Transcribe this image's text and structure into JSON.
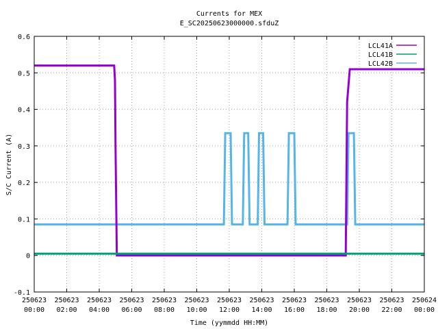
{
  "chart_data": {
    "type": "line",
    "title": "Currents for MEX",
    "subtitle": "E_SC20250623000000.sfduZ",
    "xlabel": "Time (yymmdd HH:MM)",
    "ylabel": "S/C Current (A)",
    "xlim": [
      "2025-06-23 00:00",
      "2025-06-24 00:00"
    ],
    "ylim": [
      -0.1,
      0.6
    ],
    "grid": true,
    "legend_position": "top-right",
    "x_ticks": [
      {
        "top": "250623",
        "bottom": "00:00"
      },
      {
        "top": "250623",
        "bottom": "02:00"
      },
      {
        "top": "250623",
        "bottom": "04:00"
      },
      {
        "top": "250623",
        "bottom": "06:00"
      },
      {
        "top": "250623",
        "bottom": "08:00"
      },
      {
        "top": "250623",
        "bottom": "10:00"
      },
      {
        "top": "250623",
        "bottom": "12:00"
      },
      {
        "top": "250623",
        "bottom": "14:00"
      },
      {
        "top": "250623",
        "bottom": "16:00"
      },
      {
        "top": "250623",
        "bottom": "18:00"
      },
      {
        "top": "250623",
        "bottom": "20:00"
      },
      {
        "top": "250623",
        "bottom": "22:00"
      },
      {
        "top": "250624",
        "bottom": "00:00"
      }
    ],
    "y_ticks": [
      "-0.1",
      "0",
      "0.1",
      "0.2",
      "0.3",
      "0.4",
      "0.5",
      "0.6"
    ],
    "series": [
      {
        "name": "LCL41A",
        "color": "#9400d3",
        "x": [
          "2025-06-23 00:00",
          "2025-06-23 04:55",
          "2025-06-23 04:58",
          "2025-06-23 05:00",
          "2025-06-23 05:05",
          "2025-06-23 19:10",
          "2025-06-23 19:15",
          "2025-06-23 19:25",
          "2025-06-24 00:00"
        ],
        "y": [
          0.52,
          0.52,
          0.48,
          0.3,
          0.0,
          0.0,
          0.42,
          0.51,
          0.51
        ]
      },
      {
        "name": "LCL41B",
        "color": "#009e73",
        "x": [
          "2025-06-23 00:00",
          "2025-06-24 00:00"
        ],
        "y": [
          0.005,
          0.005
        ]
      },
      {
        "name": "LCL42B",
        "color": "#56b4e9",
        "x": [
          "2025-06-23 00:00",
          "2025-06-23 11:40",
          "2025-06-23 11:45",
          "2025-06-23 12:05",
          "2025-06-23 12:10",
          "2025-06-23 12:50",
          "2025-06-23 12:55",
          "2025-06-23 13:10",
          "2025-06-23 13:15",
          "2025-06-23 13:45",
          "2025-06-23 13:50",
          "2025-06-23 14:05",
          "2025-06-23 14:10",
          "2025-06-23 15:35",
          "2025-06-23 15:40",
          "2025-06-23 16:00",
          "2025-06-23 16:05",
          "2025-06-23 19:15",
          "2025-06-23 19:20",
          "2025-06-23 19:40",
          "2025-06-23 19:45",
          "2025-06-24 00:00"
        ],
        "y": [
          0.085,
          0.085,
          0.335,
          0.335,
          0.085,
          0.085,
          0.335,
          0.335,
          0.085,
          0.085,
          0.335,
          0.335,
          0.085,
          0.085,
          0.335,
          0.335,
          0.085,
          0.085,
          0.335,
          0.335,
          0.085,
          0.085
        ]
      }
    ]
  }
}
